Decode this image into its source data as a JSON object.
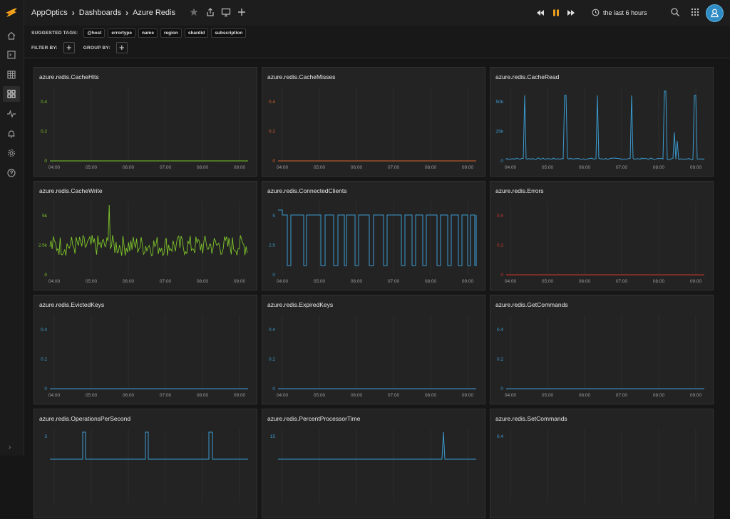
{
  "breadcrumb": [
    "AppOptics",
    "Dashboards",
    "Azure Redis"
  ],
  "time_range": "the last 6 hours",
  "suggested_tags_label": "SUGGESTED TAGS:",
  "tags": [
    "@host",
    "errortype",
    "name",
    "region",
    "shardid",
    "subscription"
  ],
  "filter_label": "FILTER BY:",
  "group_label": "GROUP BY:",
  "plus": "+",
  "colors": {
    "green": "#7ec42a",
    "orange": "#d9642c",
    "blue": "#3b9bd0",
    "red": "#d2352b",
    "accent": "#2f8cc4"
  },
  "panels": [
    {
      "title": "azure.redis.CacheHits",
      "color": "green",
      "ytick_color": "green",
      "yticks": [
        "0.4",
        "0.2",
        "0"
      ],
      "xticks": [
        "04:00",
        "05:00",
        "06:00",
        "07:00",
        "08:00",
        "09:00"
      ],
      "shape": "flat"
    },
    {
      "title": "azure.redis.CacheMisses",
      "color": "orange",
      "ytick_color": "orange",
      "yticks": [
        "0.4",
        "0.2",
        "0"
      ],
      "xticks": [
        "04:00",
        "05:00",
        "06:00",
        "07:00",
        "08:00",
        "09:00"
      ],
      "shape": "flat"
    },
    {
      "title": "azure.redis.CacheRead",
      "color": "blue",
      "ytick_color": "blue",
      "yticks": [
        "50k",
        "25k",
        "0"
      ],
      "xticks": [
        "04:00",
        "05:00",
        "06:00",
        "07:00",
        "08:00",
        "09:00"
      ],
      "shape": "spikes"
    },
    {
      "title": "azure.redis.CacheWrite",
      "color": "green",
      "ytick_color": "green",
      "yticks": [
        "5k",
        "2.5k",
        "0"
      ],
      "xticks": [
        "04:00",
        "05:00",
        "06:00",
        "07:00",
        "08:00",
        "09:00"
      ],
      "shape": "noise"
    },
    {
      "title": "azure.redis.ConnectedClients",
      "color": "blue",
      "ytick_color": "blue",
      "yticks": [
        "5",
        "2.5",
        "0"
      ],
      "xticks": [
        "04:00",
        "05:00",
        "06:00",
        "07:00",
        "08:00",
        "09:00"
      ],
      "shape": "square"
    },
    {
      "title": "azure.redis.Errors",
      "color": "red",
      "ytick_color": "red",
      "yticks": [
        "0.4",
        "0.2",
        "0"
      ],
      "xticks": [
        "04:00",
        "05:00",
        "06:00",
        "07:00",
        "08:00",
        "09:00"
      ],
      "shape": "flat"
    },
    {
      "title": "azure.redis.EvictedKeys",
      "color": "blue",
      "ytick_color": "blue",
      "yticks": [
        "0.4",
        "0.2",
        "0"
      ],
      "xticks": [
        "04:00",
        "05:00",
        "06:00",
        "07:00",
        "08:00",
        "09:00"
      ],
      "shape": "flat"
    },
    {
      "title": "azure.redis.ExpiredKeys",
      "color": "blue",
      "ytick_color": "blue",
      "yticks": [
        "0.4",
        "0.2",
        "0"
      ],
      "xticks": [
        "04:00",
        "05:00",
        "06:00",
        "07:00",
        "08:00",
        "09:00"
      ],
      "shape": "flat"
    },
    {
      "title": "azure.redis.GetCommands",
      "color": "blue",
      "ytick_color": "blue",
      "yticks": [
        "0.4",
        "0.2",
        "0"
      ],
      "xticks": [
        "04:00",
        "05:00",
        "06:00",
        "07:00",
        "08:00",
        "09:00"
      ],
      "shape": "flat"
    },
    {
      "title": "azure.redis.OperationsPerSecond",
      "color": "blue",
      "ytick_color": "blue",
      "yticks": [
        "3"
      ],
      "xticks": [],
      "shape": "ops"
    },
    {
      "title": "azure.redis.PercentProcessorTime",
      "color": "blue",
      "ytick_color": "blue",
      "yticks": [
        "15"
      ],
      "xticks": [],
      "shape": "cpu"
    },
    {
      "title": "azure.redis.SetCommands",
      "color": "blue",
      "ytick_color": "blue",
      "yticks": [
        "0.4"
      ],
      "xticks": [],
      "shape": "none"
    }
  ]
}
